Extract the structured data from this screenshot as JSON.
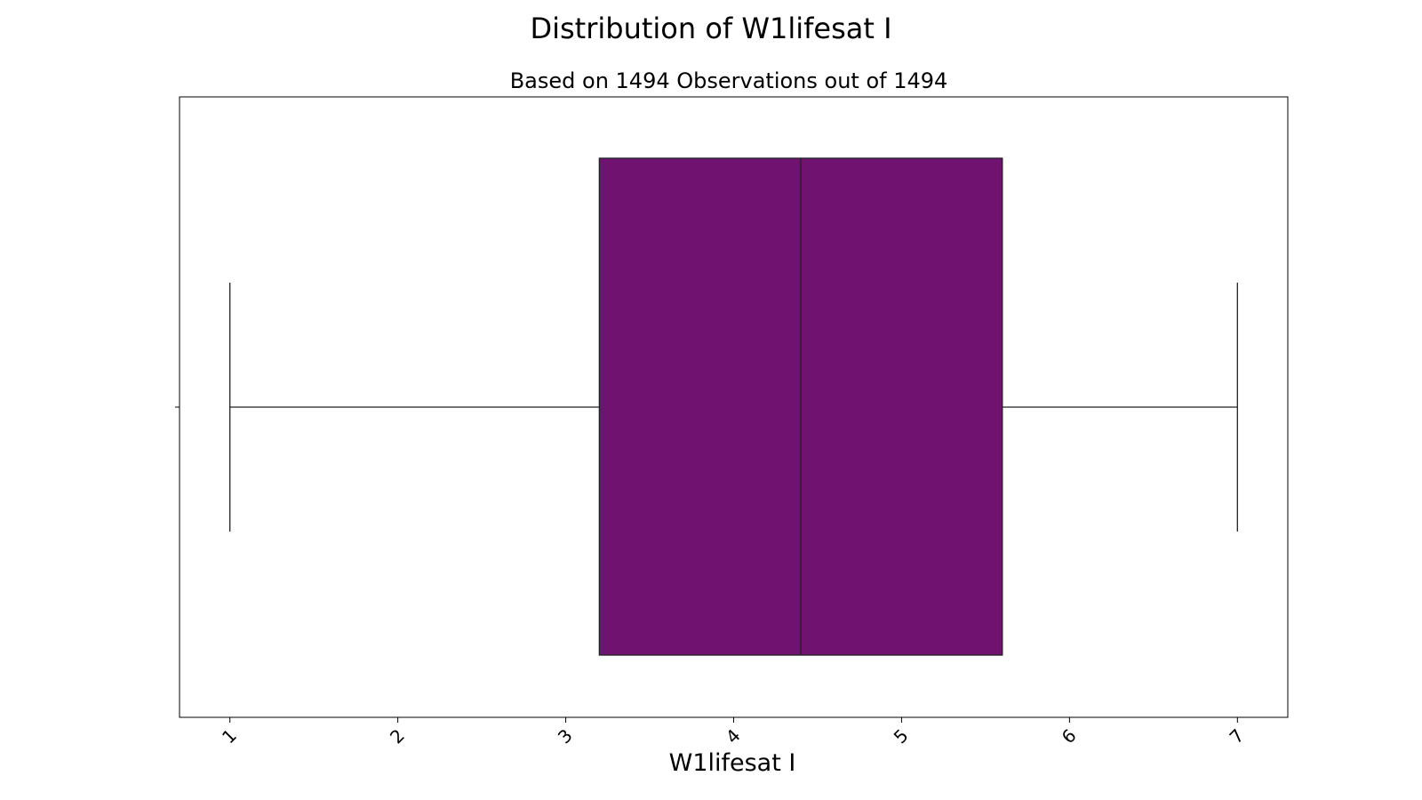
{
  "chart_data": {
    "type": "box",
    "title": "Distribution of W1lifesat I",
    "subtitle": "Based on 1494 Observations out of 1494",
    "xlabel": "W1lifesat I",
    "ylabel": "",
    "xlim": [
      0.7,
      7.3
    ],
    "xticks": [
      "1",
      "2",
      "3",
      "4",
      "5",
      "6",
      "7"
    ],
    "box": {
      "whisker_low": 1.0,
      "q1": 3.2,
      "median": 4.4,
      "q3": 5.6,
      "whisker_high": 7.0
    },
    "color": "#70126f",
    "grid": false,
    "orientation": "horizontal"
  }
}
